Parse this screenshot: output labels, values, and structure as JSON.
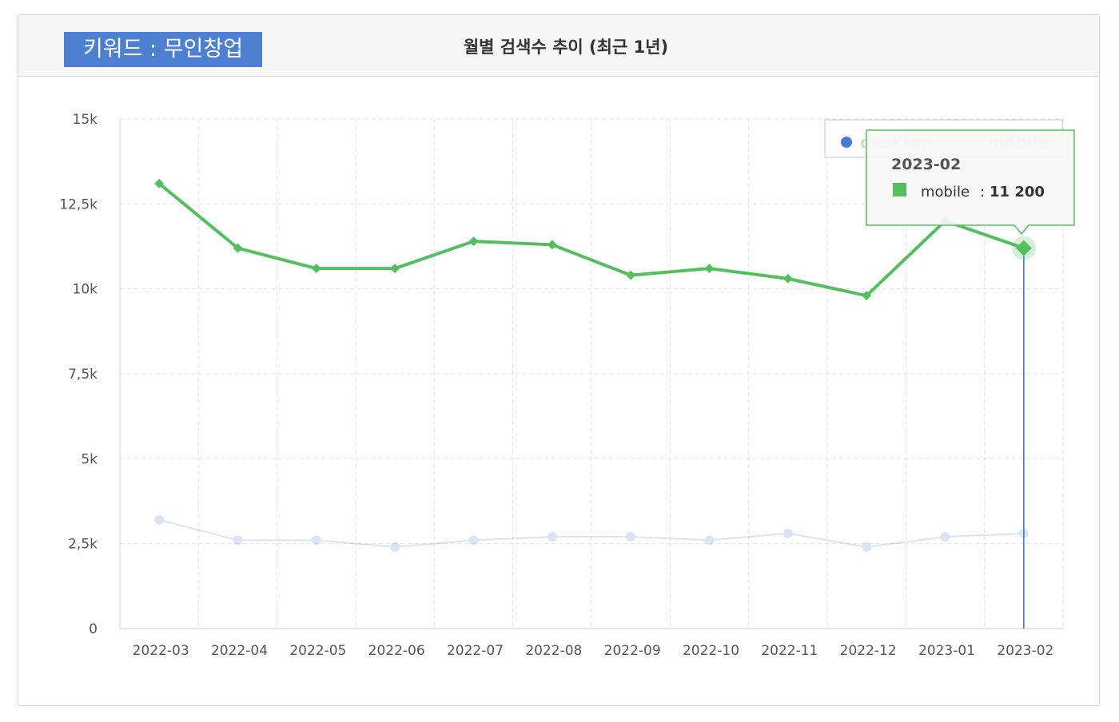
{
  "header": {
    "keyword_label": "키워드 : 무인창업",
    "chart_title": "월별 검색수 추이 (최근 1년)"
  },
  "colors": {
    "desktop": "#4a7bd0",
    "mobile": "#55bf5f",
    "badge": "#4d7fd3",
    "grid": "#e2e2e2",
    "crosshair": "#3d72c4"
  },
  "tooltip": {
    "date": "2023-02",
    "series": "mobile",
    "separator": ":",
    "value_text": "11 200"
  },
  "chart_data": {
    "type": "line",
    "categories": [
      "2022-03",
      "2022-04",
      "2022-05",
      "2022-06",
      "2022-07",
      "2022-08",
      "2022-09",
      "2022-10",
      "2022-11",
      "2022-12",
      "2023-01",
      "2023-02"
    ],
    "series": [
      {
        "name": "desktop",
        "color": "#4a7bd0",
        "marker": "circle",
        "dimmed": true,
        "values": [
          3200,
          2600,
          2600,
          2400,
          2600,
          2700,
          2700,
          2600,
          2800,
          2400,
          2700,
          2800
        ]
      },
      {
        "name": "mobile",
        "color": "#55bf5f",
        "marker": "diamond",
        "dimmed": false,
        "values": [
          13100,
          11200,
          10600,
          10600,
          11400,
          11300,
          10400,
          10600,
          10300,
          9800,
          12000,
          11200
        ]
      }
    ],
    "y_ticks": [
      0,
      2500,
      5000,
      7500,
      10000,
      12500,
      15000
    ],
    "y_tick_labels": [
      "0",
      "2,5k",
      "5k",
      "7,5k",
      "10k",
      "12,5k",
      "15k"
    ],
    "ylim": [
      0,
      15000
    ],
    "grid": true,
    "legend_position": "top-right",
    "highlighted": {
      "series": "mobile",
      "category": "2023-02"
    }
  }
}
